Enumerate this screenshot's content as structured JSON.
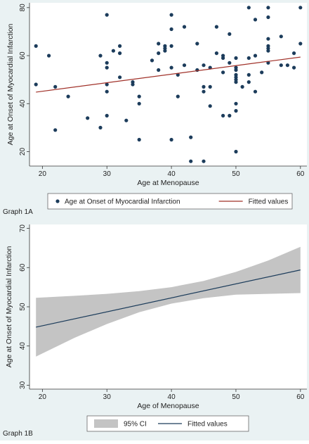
{
  "colors": {
    "background": "#eaf2f3",
    "plot_bg": "#ffffff",
    "marker": "#1c3c5b",
    "fit_line_a": "#a03028",
    "fit_line_b": "#1c3c5b",
    "ci_band": "#c4c4c4"
  },
  "chart_data": [
    {
      "type": "scatter",
      "panel_label": "Graph 1A",
      "xlabel": "Age at Menopause",
      "ylabel": "Age at Onset of Myocardial Infarction",
      "xlim": [
        18,
        61
      ],
      "ylim": [
        14,
        82
      ],
      "xticks": [
        20,
        30,
        40,
        50,
        60
      ],
      "yticks": [
        20,
        40,
        60,
        80
      ],
      "grid": false,
      "legend_position": "bottom",
      "series": [
        {
          "name": "Age at Onset of Myocardial Infarction",
          "kind": "points",
          "points": [
            [
              19,
              64
            ],
            [
              19,
              48
            ],
            [
              21,
              60
            ],
            [
              22,
              47
            ],
            [
              22,
              29
            ],
            [
              24,
              43
            ],
            [
              27,
              34
            ],
            [
              29,
              60
            ],
            [
              29,
              30
            ],
            [
              30,
              77
            ],
            [
              30,
              57
            ],
            [
              30,
              55
            ],
            [
              30,
              48
            ],
            [
              30,
              45
            ],
            [
              30,
              35
            ],
            [
              31,
              62
            ],
            [
              32,
              64
            ],
            [
              32,
              61
            ],
            [
              32,
              51
            ],
            [
              33,
              33
            ],
            [
              34,
              49
            ],
            [
              34,
              48
            ],
            [
              35,
              43
            ],
            [
              35,
              40
            ],
            [
              35,
              25
            ],
            [
              37,
              58
            ],
            [
              38,
              65
            ],
            [
              38,
              61
            ],
            [
              38,
              54
            ],
            [
              39,
              64
            ],
            [
              39,
              63
            ],
            [
              39,
              62
            ],
            [
              40,
              77
            ],
            [
              40,
              71
            ],
            [
              40,
              64
            ],
            [
              40,
              55
            ],
            [
              40,
              25
            ],
            [
              41,
              52
            ],
            [
              41,
              43
            ],
            [
              42,
              72
            ],
            [
              42,
              56
            ],
            [
              43,
              26
            ],
            [
              43,
              16
            ],
            [
              44,
              65
            ],
            [
              44,
              54
            ],
            [
              45,
              56
            ],
            [
              45,
              47
            ],
            [
              45,
              45
            ],
            [
              45,
              16
            ],
            [
              46,
              55
            ],
            [
              46,
              47
            ],
            [
              46,
              39
            ],
            [
              47,
              72
            ],
            [
              47,
              61
            ],
            [
              48,
              60
            ],
            [
              48,
              59
            ],
            [
              48,
              53
            ],
            [
              48,
              35
            ],
            [
              49,
              69
            ],
            [
              49,
              57
            ],
            [
              49,
              35
            ],
            [
              50,
              59
            ],
            [
              50,
              55
            ],
            [
              50,
              54
            ],
            [
              50,
              52
            ],
            [
              50,
              51
            ],
            [
              50,
              50
            ],
            [
              50,
              49
            ],
            [
              50,
              40
            ],
            [
              50,
              37
            ],
            [
              50,
              20
            ],
            [
              51,
              47
            ],
            [
              52,
              80
            ],
            [
              52,
              59
            ],
            [
              52,
              52
            ],
            [
              52,
              49
            ],
            [
              53,
              75
            ],
            [
              53,
              60
            ],
            [
              53,
              45
            ],
            [
              54,
              53
            ],
            [
              55,
              80
            ],
            [
              55,
              76
            ],
            [
              55,
              67
            ],
            [
              55,
              64
            ],
            [
              55,
              63
            ],
            [
              55,
              62
            ],
            [
              55,
              57
            ],
            [
              57,
              68
            ],
            [
              57,
              56
            ],
            [
              58,
              56
            ],
            [
              59,
              55
            ],
            [
              59,
              61
            ],
            [
              60,
              80
            ],
            [
              60,
              65
            ]
          ]
        },
        {
          "name": "Fitted values",
          "kind": "line",
          "x": [
            19,
            60
          ],
          "y": [
            44.8,
            59.4
          ]
        }
      ]
    },
    {
      "type": "area",
      "panel_label": "Graph 1B",
      "xlabel": "Age of Menopause",
      "ylabel": "Age at Onset of  Myocardial Infarction",
      "xlim": [
        18,
        61
      ],
      "ylim": [
        29,
        71
      ],
      "xticks": [
        20,
        30,
        40,
        50,
        60
      ],
      "yticks": [
        30,
        40,
        50,
        60,
        70
      ],
      "grid": false,
      "legend_position": "bottom",
      "series": [
        {
          "name": "95% CI",
          "kind": "band",
          "x": [
            19,
            25,
            30,
            35,
            40,
            45,
            50,
            55,
            60
          ],
          "lower": [
            37.3,
            42.1,
            45.6,
            48.6,
            50.8,
            52.2,
            53.1,
            53.3,
            53.5
          ],
          "upper": [
            52.3,
            52.8,
            53.3,
            54.0,
            55.0,
            56.6,
            58.9,
            61.8,
            65.3
          ]
        },
        {
          "name": "Fitted values",
          "kind": "line",
          "x": [
            19,
            60
          ],
          "y": [
            44.8,
            59.4
          ]
        }
      ]
    }
  ]
}
